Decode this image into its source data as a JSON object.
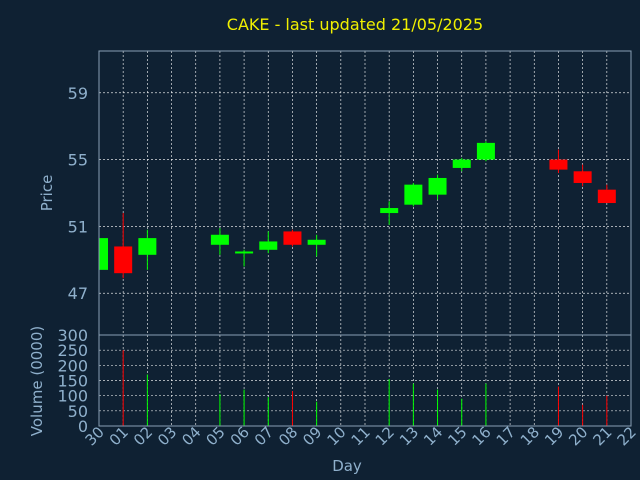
{
  "chart_data": {
    "type": "candlestick",
    "title": "CAKE - last updated 21/05/2025",
    "price_panel": {
      "ylabel": "Price",
      "ylim": [
        44.5,
        61.5
      ],
      "yticks": [
        47,
        51,
        55,
        59
      ]
    },
    "volume_panel": {
      "ylabel": "Volume (0000)",
      "ylim": [
        0,
        300
      ],
      "yticks": [
        0,
        50,
        100,
        150,
        200,
        250,
        300
      ]
    },
    "xlabel": "Day",
    "x_tick_labels": [
      "30",
      "01",
      "02",
      "03",
      "04",
      "05",
      "06",
      "07",
      "08",
      "09",
      "10",
      "11",
      "12",
      "13",
      "14",
      "15",
      "16",
      "17",
      "18",
      "19",
      "20",
      "21",
      "22"
    ],
    "candles": [
      {
        "day": "30",
        "open": 48.4,
        "close": 50.3,
        "high": 50.3,
        "low": 48.4,
        "volume": 0
      },
      {
        "day": "01",
        "open": 49.8,
        "close": 48.2,
        "high": 51.8,
        "low": 47.9,
        "volume": 250
      },
      {
        "day": "02",
        "open": 49.3,
        "close": 50.3,
        "high": 50.8,
        "low": 48.4,
        "volume": 170
      },
      {
        "day": "05",
        "open": 49.9,
        "close": 50.5,
        "high": 50.9,
        "low": 49.3,
        "volume": 105
      },
      {
        "day": "06",
        "open": 49.4,
        "close": 49.5,
        "high": 49.6,
        "low": 48.6,
        "volume": 120
      },
      {
        "day": "07",
        "open": 49.6,
        "close": 50.1,
        "high": 50.7,
        "low": 49.4,
        "volume": 95
      },
      {
        "day": "08",
        "open": 50.7,
        "close": 49.9,
        "high": 50.8,
        "low": 49.8,
        "volume": 115
      },
      {
        "day": "09",
        "open": 49.9,
        "close": 50.2,
        "high": 50.5,
        "low": 49.2,
        "volume": 80
      },
      {
        "day": "12",
        "open": 51.8,
        "close": 52.1,
        "high": 52.5,
        "low": 51.1,
        "volume": 155
      },
      {
        "day": "13",
        "open": 52.3,
        "close": 53.5,
        "high": 53.6,
        "low": 52.2,
        "volume": 140
      },
      {
        "day": "14",
        "open": 52.9,
        "close": 53.9,
        "high": 54.1,
        "low": 52.6,
        "volume": 120
      },
      {
        "day": "15",
        "open": 54.5,
        "close": 55.0,
        "high": 55.1,
        "low": 54.3,
        "volume": 90
      },
      {
        "day": "16",
        "open": 55.0,
        "close": 56.0,
        "high": 56.1,
        "low": 54.9,
        "volume": 140
      },
      {
        "day": "19",
        "open": 55.0,
        "close": 54.4,
        "high": 55.6,
        "low": 54.2,
        "volume": 130
      },
      {
        "day": "20",
        "open": 54.3,
        "close": 53.6,
        "high": 54.7,
        "low": 53.4,
        "volume": 70
      },
      {
        "day": "21",
        "open": 53.2,
        "close": 52.4,
        "high": 53.5,
        "low": 52.4,
        "volume": 100
      }
    ],
    "colors": {
      "background": "#0f2133",
      "up": "#00ff00",
      "down": "#ff0000",
      "title": "#f0f000",
      "labels": "#8fb0cc",
      "grid": "#ffffff"
    },
    "grid": true
  }
}
